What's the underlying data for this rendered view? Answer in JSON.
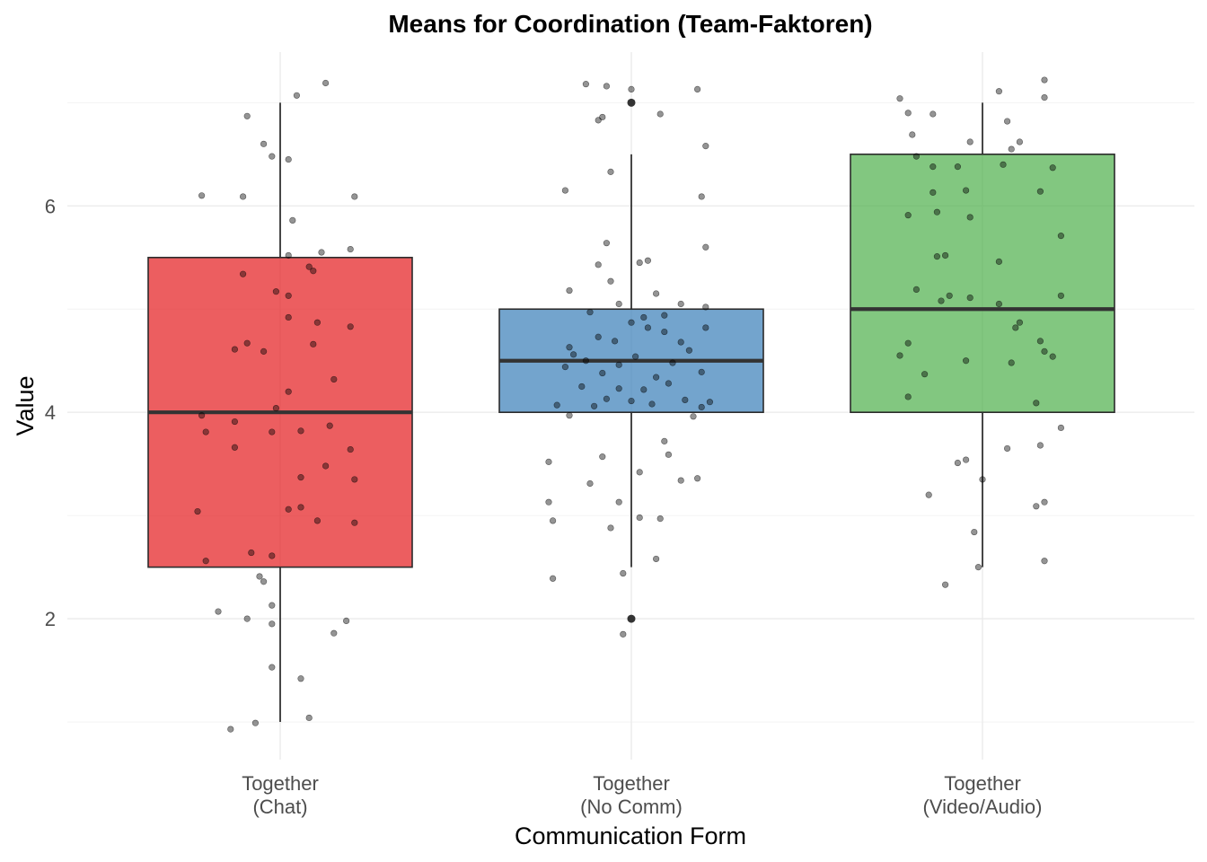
{
  "chart_data": {
    "type": "boxplot",
    "title": "Means for Coordination (Team-Faktoren)",
    "xlabel": "Communication Form",
    "ylabel": "Value",
    "ylim": [
      0.7,
      7.4
    ],
    "yticks": [
      2,
      4,
      6
    ],
    "grid": true,
    "legend": "none",
    "categories": [
      {
        "label_line1": "Together",
        "label_line2": "(Chat)"
      },
      {
        "label_line1": "Together",
        "label_line2": "(No Comm)"
      },
      {
        "label_line1": "Together",
        "label_line2": "(Video/Audio)"
      }
    ],
    "series": [
      {
        "color": "#E41A1C",
        "box": {
          "whisker_low": 1.0,
          "q1": 2.5,
          "median": 4.0,
          "q3": 5.5,
          "whisker_high": 7.0
        },
        "outliers": [],
        "points": [
          [
            -0.12,
            0.93
          ],
          [
            -0.06,
            0.99
          ],
          [
            0.07,
            1.04
          ],
          [
            -0.02,
            1.53
          ],
          [
            0.05,
            1.42
          ],
          [
            -0.15,
            2.07
          ],
          [
            -0.08,
            2.0
          ],
          [
            -0.02,
            1.95
          ],
          [
            0.13,
            1.86
          ],
          [
            0.16,
            1.98
          ],
          [
            -0.05,
            2.41
          ],
          [
            -0.04,
            2.36
          ],
          [
            -0.02,
            2.13
          ],
          [
            -0.18,
            2.56
          ],
          [
            -0.07,
            2.64
          ],
          [
            -0.02,
            2.61
          ],
          [
            -0.2,
            3.04
          ],
          [
            0.02,
            3.06
          ],
          [
            0.05,
            3.08
          ],
          [
            0.09,
            2.95
          ],
          [
            0.18,
            2.93
          ],
          [
            -0.11,
            3.66
          ],
          [
            -0.02,
            3.81
          ],
          [
            0.05,
            3.82
          ],
          [
            0.05,
            3.37
          ],
          [
            0.11,
            3.48
          ],
          [
            0.17,
            3.64
          ],
          [
            0.18,
            3.35
          ],
          [
            -0.19,
            3.97
          ],
          [
            -0.18,
            3.81
          ],
          [
            -0.11,
            3.91
          ],
          [
            -0.01,
            4.04
          ],
          [
            0.02,
            4.2
          ],
          [
            0.13,
            4.32
          ],
          [
            0.12,
            3.87
          ],
          [
            -0.11,
            4.61
          ],
          [
            -0.08,
            4.67
          ],
          [
            -0.04,
            4.59
          ],
          [
            0.08,
            4.66
          ],
          [
            0.02,
            4.92
          ],
          [
            0.09,
            4.87
          ],
          [
            0.17,
            4.83
          ],
          [
            -0.09,
            5.34
          ],
          [
            -0.01,
            5.17
          ],
          [
            0.02,
            5.13
          ],
          [
            0.07,
            5.41
          ],
          [
            0.08,
            5.37
          ],
          [
            0.02,
            5.52
          ],
          [
            0.1,
            5.55
          ],
          [
            0.17,
            5.58
          ],
          [
            0.03,
            5.86
          ],
          [
            -0.19,
            6.1
          ],
          [
            -0.09,
            6.09
          ],
          [
            0.18,
            6.09
          ],
          [
            -0.04,
            6.6
          ],
          [
            -0.02,
            6.48
          ],
          [
            0.02,
            6.45
          ],
          [
            -0.08,
            6.87
          ],
          [
            0.04,
            7.07
          ],
          [
            0.11,
            7.19
          ]
        ]
      },
      {
        "color": "#377EB8",
        "box": {
          "whisker_low": 2.5,
          "q1": 4.0,
          "median": 4.5,
          "q3": 5.0,
          "whisker_high": 6.5
        },
        "outliers": [
          2.0,
          7.0
        ],
        "points": [
          [
            -0.19,
            2.39
          ],
          [
            -0.02,
            2.44
          ],
          [
            -0.02,
            1.85
          ],
          [
            0.06,
            2.58
          ],
          [
            -0.2,
            3.13
          ],
          [
            -0.19,
            2.95
          ],
          [
            -0.1,
            3.31
          ],
          [
            -0.05,
            2.88
          ],
          [
            -0.03,
            3.13
          ],
          [
            0.02,
            2.98
          ],
          [
            0.07,
            2.97
          ],
          [
            0.12,
            3.34
          ],
          [
            0.16,
            3.36
          ],
          [
            -0.2,
            3.52
          ],
          [
            -0.07,
            3.57
          ],
          [
            0.02,
            3.42
          ],
          [
            0.08,
            3.72
          ],
          [
            0.09,
            3.59
          ],
          [
            -0.18,
            4.07
          ],
          [
            -0.15,
            3.97
          ],
          [
            -0.12,
            4.25
          ],
          [
            -0.09,
            4.06
          ],
          [
            -0.06,
            4.13
          ],
          [
            -0.03,
            4.23
          ],
          [
            0.0,
            4.11
          ],
          [
            0.03,
            4.22
          ],
          [
            0.05,
            4.08
          ],
          [
            0.09,
            4.28
          ],
          [
            0.13,
            4.12
          ],
          [
            0.15,
            3.96
          ],
          [
            0.17,
            4.05
          ],
          [
            0.19,
            4.1
          ],
          [
            -0.16,
            4.44
          ],
          [
            -0.14,
            4.56
          ],
          [
            -0.11,
            4.5
          ],
          [
            -0.07,
            4.38
          ],
          [
            -0.03,
            4.46
          ],
          [
            0.01,
            4.54
          ],
          [
            0.06,
            4.34
          ],
          [
            0.1,
            4.48
          ],
          [
            0.14,
            4.6
          ],
          [
            0.17,
            4.39
          ],
          [
            -0.15,
            4.63
          ],
          [
            -0.08,
            4.73
          ],
          [
            -0.04,
            4.69
          ],
          [
            0.0,
            4.87
          ],
          [
            0.04,
            4.82
          ],
          [
            0.08,
            4.78
          ],
          [
            0.12,
            4.68
          ],
          [
            0.18,
            4.82
          ],
          [
            -0.1,
            4.97
          ],
          [
            -0.03,
            5.05
          ],
          [
            0.03,
            4.92
          ],
          [
            0.08,
            4.94
          ],
          [
            0.12,
            5.05
          ],
          [
            0.18,
            5.02
          ],
          [
            -0.15,
            5.18
          ],
          [
            -0.05,
            5.27
          ],
          [
            0.02,
            5.45
          ],
          [
            0.06,
            5.15
          ],
          [
            -0.08,
            5.43
          ],
          [
            -0.06,
            5.64
          ],
          [
            0.04,
            5.47
          ],
          [
            0.18,
            5.6
          ],
          [
            -0.16,
            6.15
          ],
          [
            -0.05,
            6.33
          ],
          [
            0.17,
            6.09
          ],
          [
            0.18,
            6.58
          ],
          [
            -0.07,
            6.86
          ],
          [
            -0.08,
            6.83
          ],
          [
            0.07,
            6.89
          ],
          [
            -0.11,
            7.18
          ],
          [
            -0.06,
            7.16
          ],
          [
            0.0,
            7.13
          ],
          [
            0.16,
            7.13
          ]
        ]
      },
      {
        "color": "#4DAF4A",
        "box": {
          "whisker_low": 2.5,
          "q1": 4.0,
          "median": 5.0,
          "q3": 6.5,
          "whisker_high": 7.0
        },
        "outliers": [],
        "points": [
          [
            -0.09,
            2.33
          ],
          [
            -0.01,
            2.5
          ],
          [
            0.15,
            2.56
          ],
          [
            -0.02,
            2.84
          ],
          [
            -0.13,
            3.2
          ],
          [
            0.13,
            3.09
          ],
          [
            0.15,
            3.13
          ],
          [
            -0.06,
            3.51
          ],
          [
            -0.04,
            3.54
          ],
          [
            0.0,
            3.35
          ],
          [
            0.06,
            3.65
          ],
          [
            0.14,
            3.68
          ],
          [
            0.19,
            3.85
          ],
          [
            -0.18,
            4.15
          ],
          [
            -0.14,
            4.37
          ],
          [
            -0.04,
            4.5
          ],
          [
            0.07,
            4.48
          ],
          [
            0.13,
            4.09
          ],
          [
            -0.2,
            4.55
          ],
          [
            -0.18,
            4.67
          ],
          [
            0.08,
            4.82
          ],
          [
            0.09,
            4.87
          ],
          [
            0.14,
            4.69
          ],
          [
            0.15,
            4.59
          ],
          [
            0.17,
            4.54
          ],
          [
            -0.16,
            5.19
          ],
          [
            -0.1,
            5.08
          ],
          [
            -0.08,
            5.13
          ],
          [
            -0.03,
            5.11
          ],
          [
            0.04,
            5.05
          ],
          [
            0.19,
            5.13
          ],
          [
            -0.11,
            5.51
          ],
          [
            -0.09,
            5.52
          ],
          [
            0.04,
            5.46
          ],
          [
            0.19,
            5.71
          ],
          [
            -0.18,
            5.91
          ],
          [
            -0.11,
            5.94
          ],
          [
            -0.12,
            6.13
          ],
          [
            -0.04,
            6.15
          ],
          [
            -0.03,
            5.89
          ],
          [
            0.14,
            6.14
          ],
          [
            -0.16,
            6.48
          ],
          [
            -0.12,
            6.38
          ],
          [
            -0.06,
            6.38
          ],
          [
            0.05,
            6.4
          ],
          [
            0.07,
            6.55
          ],
          [
            0.17,
            6.37
          ],
          [
            -0.17,
            6.69
          ],
          [
            -0.03,
            6.62
          ],
          [
            0.09,
            6.62
          ],
          [
            -0.2,
            7.04
          ],
          [
            -0.18,
            6.9
          ],
          [
            -0.12,
            6.89
          ],
          [
            0.04,
            7.11
          ],
          [
            0.06,
            6.82
          ],
          [
            0.15,
            7.05
          ],
          [
            0.15,
            7.22
          ]
        ]
      }
    ]
  }
}
